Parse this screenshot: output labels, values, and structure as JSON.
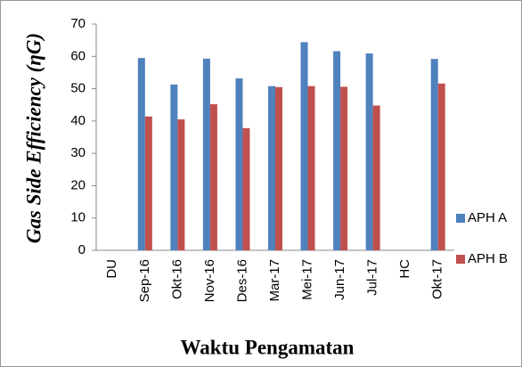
{
  "chart_data": {
    "type": "bar",
    "y_label": "Gas Side Efficiency (ηG)",
    "x_label": "Waktu Pengamatan",
    "categories": [
      "DU",
      "Sep-16",
      "Okt-16",
      "Nov-16",
      "Des-16",
      "Mar-17",
      "Mei-17",
      "Jun-17",
      "Jul-17",
      "HC",
      "Okt-17"
    ],
    "series": [
      {
        "name": "APH A",
        "color": "#4f81bd",
        "values": [
          null,
          59.5,
          51.3,
          59.3,
          53.2,
          50.8,
          64.4,
          61.6,
          60.9,
          null,
          59.2
        ]
      },
      {
        "name": "APH B",
        "color": "#c0504d",
        "values": [
          null,
          41.4,
          40.5,
          45.2,
          37.8,
          50.5,
          50.8,
          50.6,
          44.8,
          null,
          51.6
        ]
      }
    ],
    "ylim": [
      0,
      70
    ],
    "yticks": [
      0,
      10,
      20,
      30,
      40,
      50,
      60,
      70
    ]
  }
}
